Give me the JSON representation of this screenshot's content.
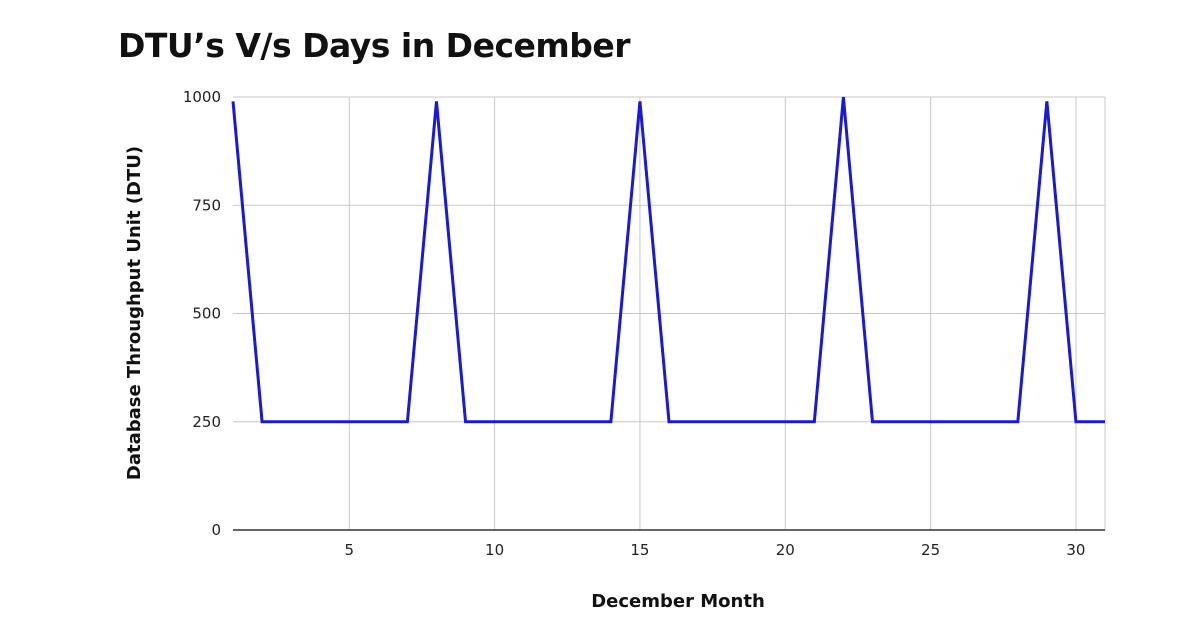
{
  "chart_data": {
    "type": "line",
    "title": "DTU’s V/s Days in December",
    "xlabel": "December Month",
    "ylabel": "Database Throughput Unit (DTU)",
    "xlim": [
      1,
      31
    ],
    "ylim": [
      0,
      1000
    ],
    "x_ticks": [
      5,
      10,
      15,
      20,
      25,
      30
    ],
    "y_ticks": [
      0,
      250,
      500,
      750,
      1000
    ],
    "grid": true,
    "legend": "none",
    "colors": {
      "line": "#1a1ad6",
      "grid": "#c8c8c8",
      "axis": "#333333"
    },
    "x": [
      1,
      2,
      3,
      4,
      5,
      6,
      7,
      8,
      9,
      10,
      11,
      12,
      13,
      14,
      15,
      16,
      17,
      18,
      19,
      20,
      21,
      22,
      23,
      24,
      25,
      26,
      27,
      28,
      29,
      30,
      31
    ],
    "series": [
      {
        "values": [
          990,
          250,
          250,
          250,
          250,
          250,
          250,
          990,
          250,
          250,
          250,
          250,
          250,
          250,
          990,
          250,
          250,
          250,
          250,
          250,
          250,
          1000,
          250,
          250,
          250,
          250,
          250,
          250,
          990,
          250,
          250
        ]
      }
    ]
  }
}
